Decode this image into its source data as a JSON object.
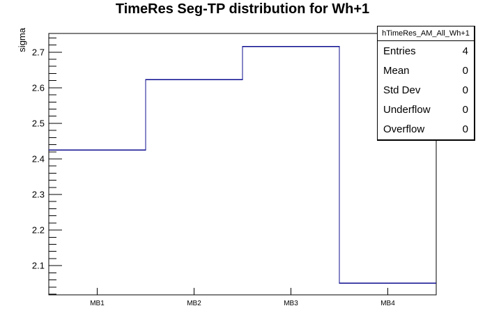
{
  "chart_data": {
    "type": "line",
    "subtype": "histogram-step",
    "title": "TimeRes Seg-TP distribution for Wh+1",
    "ylabel": "sigma",
    "xlabel": "",
    "categories": [
      "MB1",
      "MB2",
      "MB3",
      "MB4"
    ],
    "values": [
      2.425,
      2.623,
      2.716,
      2.051
    ],
    "ylim": [
      2.018,
      2.7525
    ],
    "yticks": [
      2.1,
      2.2,
      2.3,
      2.4,
      2.5,
      2.6,
      2.7
    ],
    "y_minor_step": 0.02,
    "grid": false,
    "legend": false,
    "line_color": "#0c0c8f",
    "frame_color": "#000000",
    "background_color": "#ffffff"
  },
  "stats_box": {
    "header": "hTimeRes_AM_All_Wh+1",
    "rows": [
      {
        "label": "Entries",
        "value": "4"
      },
      {
        "label": "Mean",
        "value": "0"
      },
      {
        "label": "Std Dev",
        "value": "0"
      },
      {
        "label": "Underflow",
        "value": "0"
      },
      {
        "label": "Overflow",
        "value": "0"
      }
    ]
  }
}
